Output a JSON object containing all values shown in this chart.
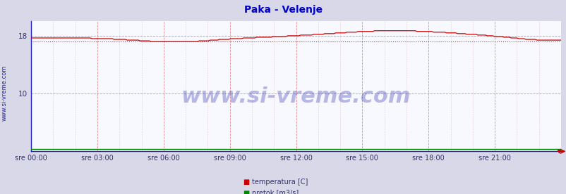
{
  "title": "Paka - Velenje",
  "title_color": "#0000cc",
  "title_fontsize": 10,
  "background_color": "#d8d8e8",
  "plot_bg_color": "#f8f8ff",
  "x_ticks_labels": [
    "sre 00:00",
    "sre 03:00",
    "sre 06:00",
    "sre 09:00",
    "sre 12:00",
    "sre 15:00",
    "sre 18:00",
    "sre 21:00"
  ],
  "x_ticks_hours": [
    0,
    3,
    6,
    9,
    12,
    15,
    18,
    21
  ],
  "y_ticks": [
    10,
    18
  ],
  "ylim": [
    2.0,
    20.0
  ],
  "xlim_hours": [
    0,
    24
  ],
  "temp_color": "#cc0000",
  "flow_color": "#008800",
  "avg_line_value": 17.2,
  "avg_line_color": "#cc0000",
  "watermark_text": "www.si-vreme.com",
  "watermark_color": "#2222aa",
  "watermark_alpha": 0.3,
  "watermark_fontsize": 22,
  "sidebar_text": "www.si-vreme.com",
  "sidebar_color": "#2222aa",
  "sidebar_fontsize": 6,
  "grid_color": "#cc4444",
  "spine_color": "#2222cc",
  "legend_items": [
    "temperatura [C]",
    "pretok [m3/s]"
  ],
  "legend_colors": [
    "#cc0000",
    "#008800"
  ],
  "flow_value": 2.3
}
